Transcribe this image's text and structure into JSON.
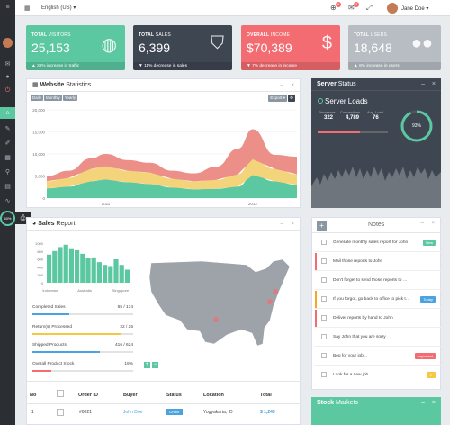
{
  "topbar": {
    "language": "English (US)",
    "user_name": "Jane Doe",
    "notif_count_1": "6",
    "notif_count_2": "3"
  },
  "sidebar": {
    "percent": "60%"
  },
  "stats": [
    {
      "label_bold": "TOTAL",
      "label_rest": " VISITORS",
      "value": "25,153",
      "footer": "38% increase in traffic",
      "color": "#5bc8a2",
      "icon": "globe-icon"
    },
    {
      "label_bold": "TOTAL",
      "label_rest": " SALES",
      "value": "6,399",
      "footer": "11% decrease in sales",
      "color": "#3e4652",
      "icon": "shopping-bag-icon"
    },
    {
      "label_bold": "OVERALL",
      "label_rest": " INCOME",
      "value": "$70,389",
      "footer": "7% decrease in income",
      "color": "#f36c71",
      "icon": "dollar-icon"
    },
    {
      "label_bold": "TOTAL",
      "label_rest": " USERS",
      "value": "18,648",
      "footer": "6% increase in users",
      "color": "#b7bdc3",
      "icon": "users-icon"
    }
  ],
  "website_stats": {
    "title_bold": "Website",
    "title_rest": " Statistics",
    "tabs": [
      "Daily",
      "Monthly",
      "Yearly"
    ],
    "export": "Export"
  },
  "chart_data": {
    "type": "area",
    "x": [
      2010.6,
      2010.75,
      2010.9,
      2011.0,
      2011.15,
      2011.3,
      2011.45,
      2011.6,
      2011.75,
      2011.9,
      2012.0,
      2012.15,
      2012.3
    ],
    "xticks": [
      "2011",
      "2012"
    ],
    "ylim": [
      0,
      20000
    ],
    "yticks": [
      "20,000",
      "15,000",
      "10,000",
      "5,000",
      "0"
    ],
    "series": [
      {
        "color": "#5bc8a2",
        "values": [
          2200,
          2600,
          3800,
          4200,
          3600,
          3200,
          2400,
          2000,
          2100,
          2600,
          5200,
          3800,
          3000
        ]
      },
      {
        "color": "#f3d47a",
        "values": [
          1600,
          2000,
          2800,
          3000,
          2600,
          2600,
          2000,
          1800,
          2000,
          2800,
          3600,
          2800,
          2400
        ]
      },
      {
        "color": "#ec8f88",
        "values": [
          1200,
          1600,
          2400,
          2800,
          2400,
          2200,
          1800,
          1800,
          3000,
          5800,
          6800,
          3200,
          4000
        ]
      }
    ]
  },
  "server": {
    "title_bold": "Server",
    "title_rest": " Status",
    "loads": "Server Loads",
    "cols": [
      "Processes",
      "Connections",
      "Avg. Load"
    ],
    "vals": [
      "322",
      "4,789",
      "76"
    ],
    "percent": "93%"
  },
  "notes": {
    "title": "Notes",
    "items": [
      {
        "text": "Generate monthly sales report for John",
        "tag": "New",
        "tag_color": "#5bc8a2",
        "bar": ""
      },
      {
        "text": "Mail those reports to John",
        "tag": "",
        "tag_color": "",
        "bar": "#f36c71"
      },
      {
        "text": "Don't forget to send those reports to …",
        "tag": "",
        "tag_color": "",
        "bar": ""
      },
      {
        "text": "If you forgot, go back to office to pick t…",
        "tag": "Today",
        "tag_color": "#4aa3df",
        "bar": "#f5a623"
      },
      {
        "text": "Deliver reports by hand to John",
        "tag": "",
        "tag_color": "",
        "bar": "#f36c71"
      },
      {
        "text": "Say John that you are sorry",
        "tag": "",
        "tag_color": "",
        "bar": ""
      },
      {
        "text": "Beg for your job...",
        "tag": "Important",
        "tag_color": "#f36c71",
        "bar": ""
      },
      {
        "text": "Look for a new job",
        "tag": "☺",
        "tag_color": "#f5c842",
        "bar": ""
      }
    ]
  },
  "stock": {
    "title_bold": "Stock",
    "title_rest": " Markets"
  },
  "sales": {
    "title_bold": "Sales",
    "title_rest": " Report",
    "yticks": [
      "1000",
      "800",
      "600",
      "400",
      "200",
      "0"
    ],
    "xlabels": [
      "Indonesia",
      "Australia",
      "Singapore"
    ],
    "bars": [
      710,
      800,
      900,
      960,
      870,
      820,
      730,
      630,
      640,
      520,
      450,
      420,
      590,
      450,
      330
    ]
  },
  "progress": [
    {
      "label": "Completed Sales",
      "value": "65 / 174",
      "frac": 0.37,
      "color": "#4aa3df"
    },
    {
      "label": "Return(s) Processed",
      "value": "22 / 25",
      "frac": 0.88,
      "color": "#f5c842"
    },
    {
      "label": "Shipped Products",
      "value": "416 / 624",
      "frac": 0.67,
      "color": "#4aa3df"
    },
    {
      "label": "Overall Product Stock",
      "value": "19%",
      "frac": 0.19,
      "color": "#f36c71"
    }
  ],
  "table": {
    "headers": [
      "No",
      "Order ID",
      "Buyer",
      "Status",
      "Location",
      "Total"
    ],
    "row": {
      "no": "1",
      "id": "#0021",
      "buyer": "John Doe",
      "status": "Order",
      "location": "Yogyakarta, ID",
      "total": "$ 1,245"
    }
  }
}
